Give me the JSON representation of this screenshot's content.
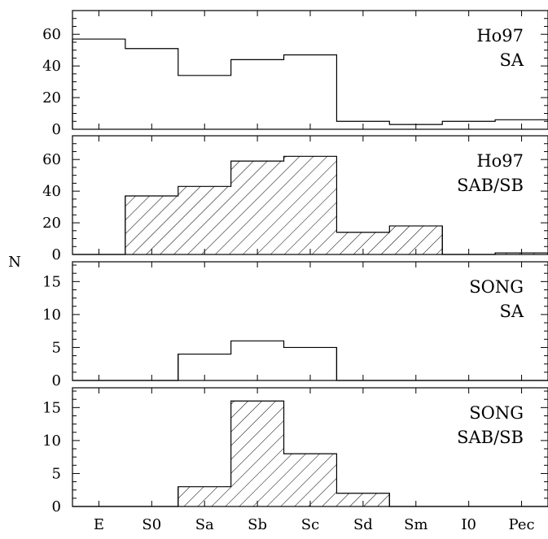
{
  "chart_data": {
    "type": "bar",
    "style": "step-histogram",
    "shared_ylabel": "N",
    "categories": [
      "E",
      "S0",
      "Sa",
      "Sb",
      "Sc",
      "Sd",
      "Sm",
      "I0",
      "Pec"
    ],
    "panels": [
      {
        "label_lines": [
          "Ho97",
          "SA"
        ],
        "hatched": false,
        "ylim": [
          0,
          75
        ],
        "yticks": [
          0,
          20,
          40,
          60
        ],
        "values": [
          57,
          51,
          34,
          44,
          47,
          5,
          3,
          5,
          6
        ]
      },
      {
        "label_lines": [
          "Ho97",
          "SAB/SB"
        ],
        "hatched": true,
        "ylim": [
          0,
          75
        ],
        "yticks": [
          0,
          20,
          40,
          60
        ],
        "values": [
          0,
          37,
          43,
          59,
          62,
          14,
          18,
          0,
          1
        ]
      },
      {
        "label_lines": [
          "SONG",
          "SA"
        ],
        "hatched": false,
        "ylim": [
          0,
          18
        ],
        "yticks": [
          0,
          5,
          10,
          15
        ],
        "values": [
          0,
          0,
          4,
          6,
          5,
          0,
          0,
          0,
          0
        ]
      },
      {
        "label_lines": [
          "SONG",
          "SAB/SB"
        ],
        "hatched": true,
        "ylim": [
          0,
          18
        ],
        "yticks": [
          0,
          5,
          10,
          15
        ],
        "values": [
          0,
          0,
          3,
          16,
          8,
          2,
          0,
          0,
          0
        ]
      }
    ]
  }
}
